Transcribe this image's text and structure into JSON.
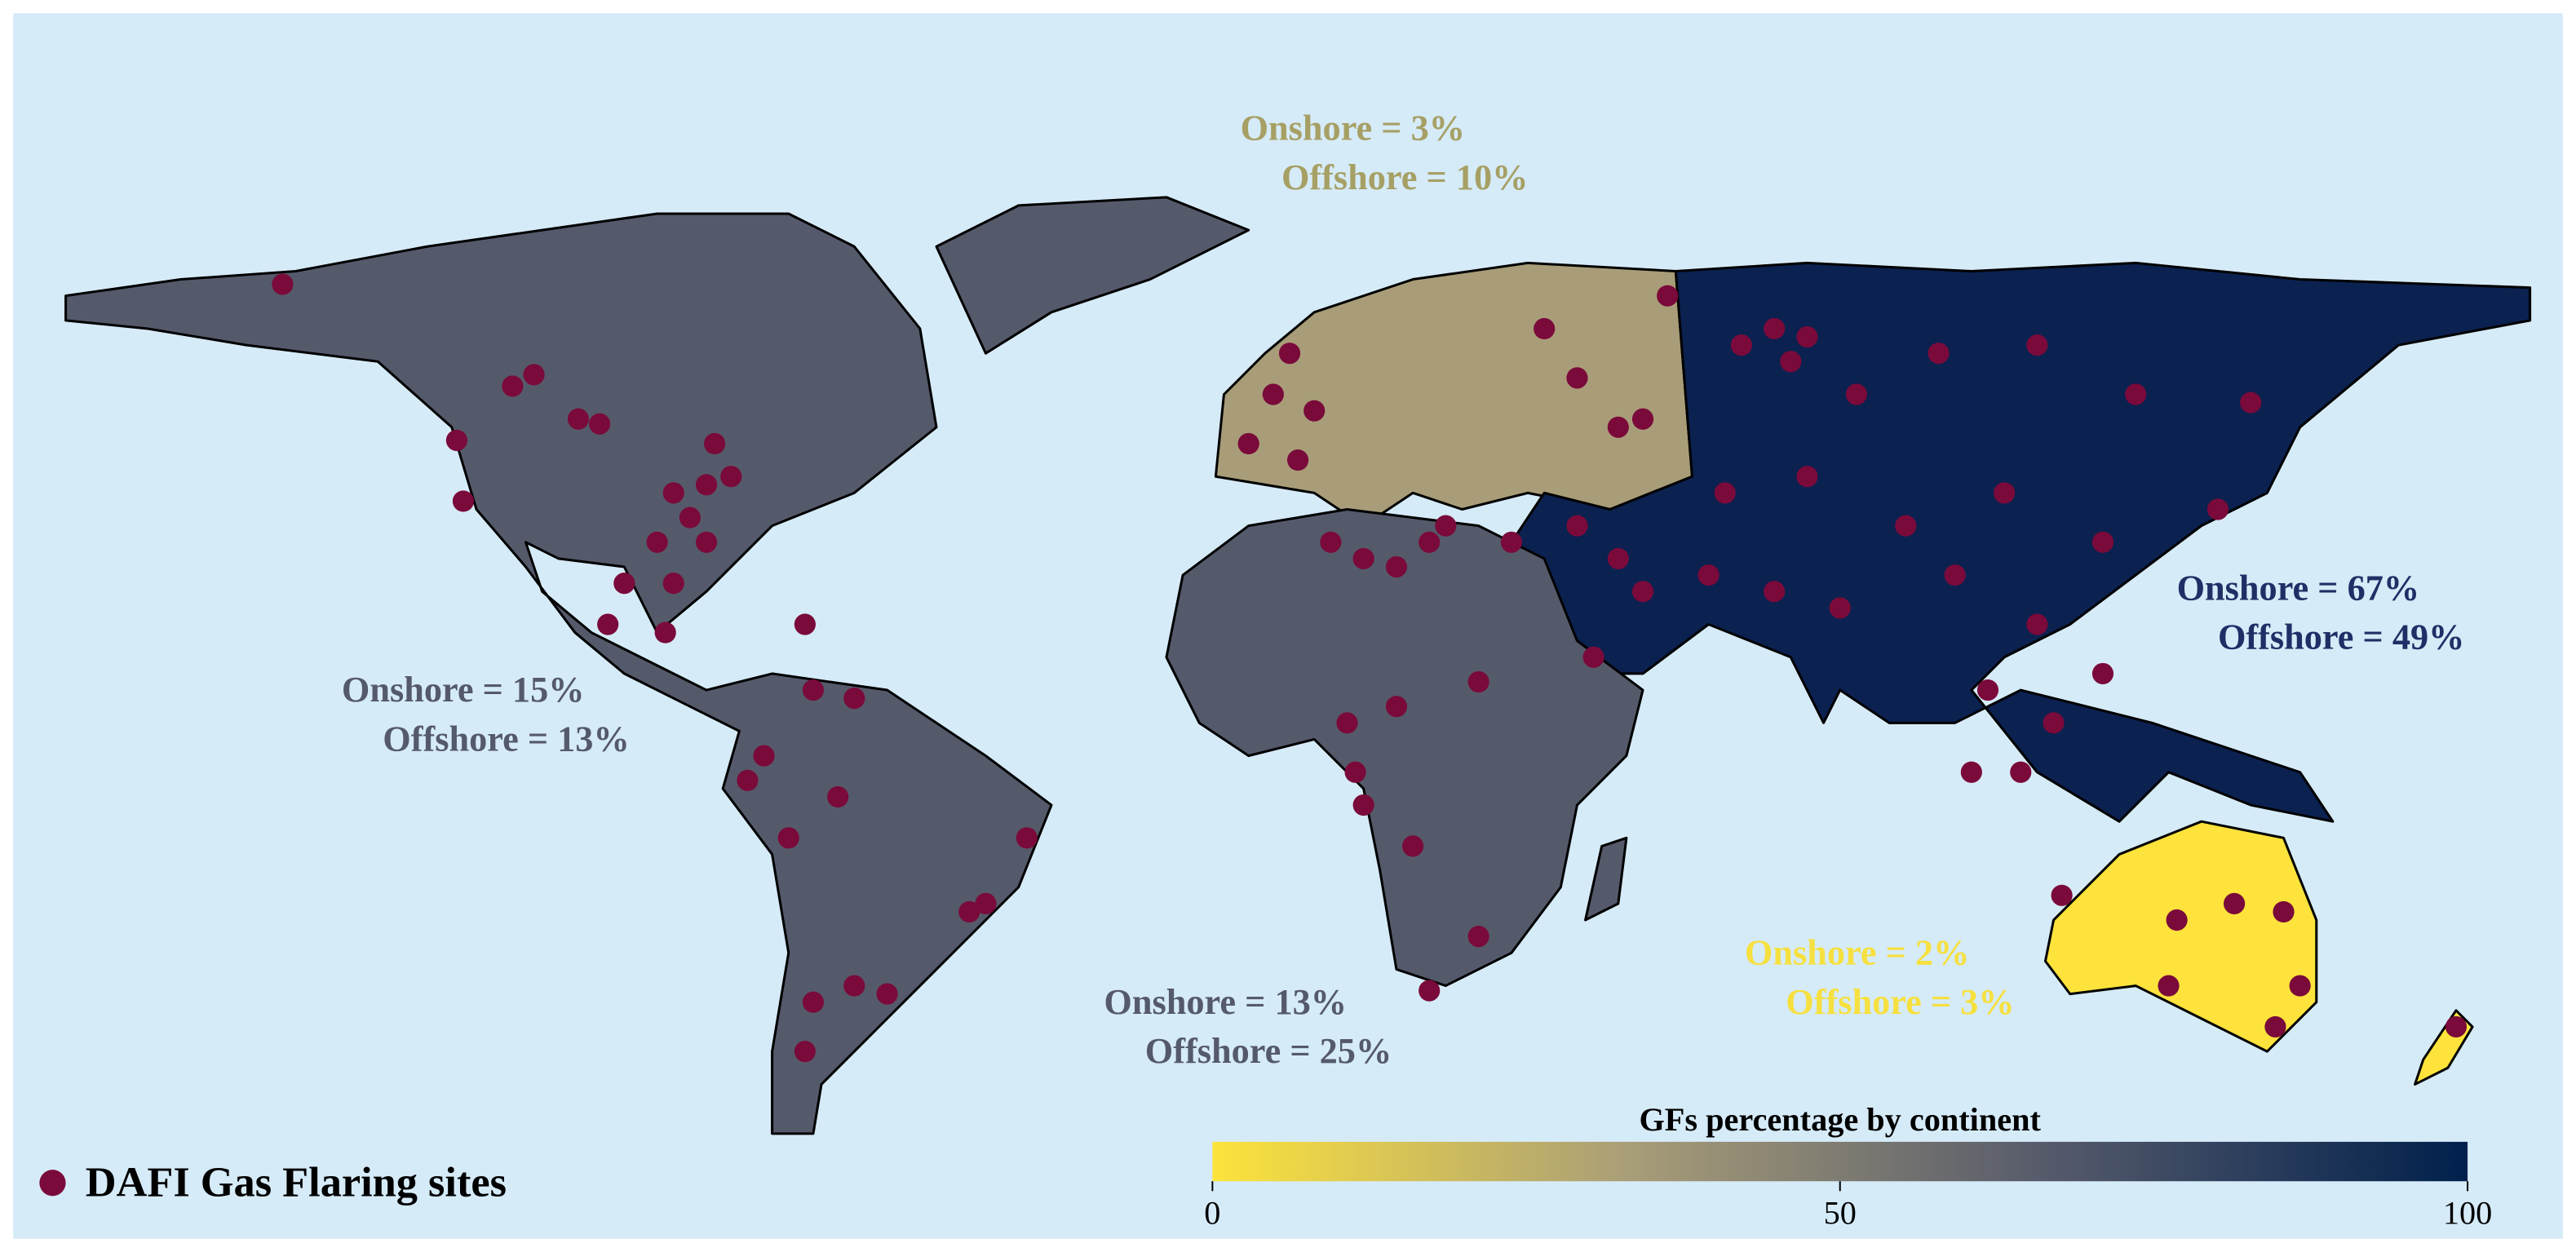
{
  "map": {
    "annotations": [
      {
        "lines": [
          "Onshore = 3%",
          "Offshore = 10%"
        ],
        "color": "#a6a065"
      },
      {
        "lines": [
          "Onshore = 67%",
          "Offshore = 49%"
        ],
        "color": "#1f2f66"
      },
      {
        "lines": [
          "Onshore = 15%",
          "Offshore = 13%"
        ],
        "color": "#555a6b"
      },
      {
        "lines": [
          "Onshore = 13%",
          "Offshore = 25%"
        ],
        "color": "#555a6b"
      },
      {
        "lines": [
          "Onshore = 2%",
          "Offshore = 3%"
        ],
        "color": "#f6e03f"
      }
    ],
    "legend": {
      "label": "DAFI Gas Flaring sites",
      "color": "#7a0a3a"
    },
    "colorbar": {
      "title": "GFs percentage by continent",
      "range": [
        0,
        100
      ],
      "ticks": [
        0,
        50,
        100
      ],
      "colors": [
        "#fde33b",
        "#a89d78",
        "#555a6b",
        "#00204c"
      ]
    }
  }
}
